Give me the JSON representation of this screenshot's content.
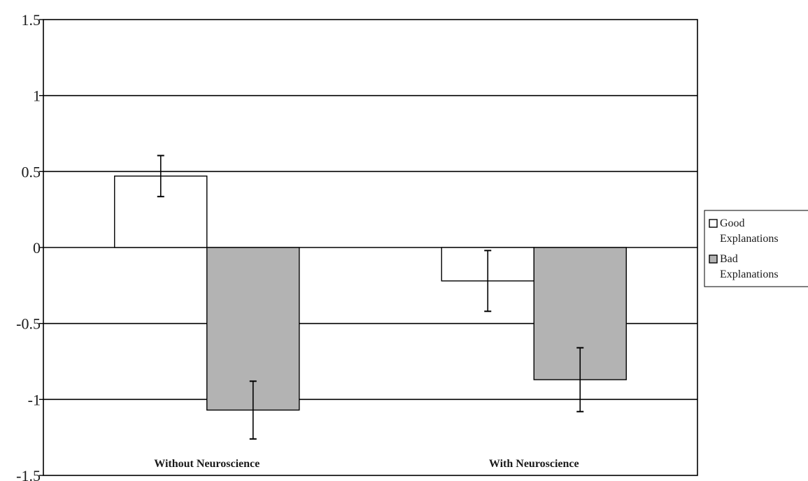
{
  "chart_data": {
    "type": "bar",
    "title": "",
    "xlabel": "",
    "ylabel": "",
    "categories": [
      "Without Neuroscience",
      "With Neuroscience"
    ],
    "series": [
      {
        "name": "Good Explanations",
        "name_lines": [
          "Good",
          "Explanations"
        ],
        "values": [
          0.47,
          -0.22
        ],
        "error": [
          0.135,
          0.2
        ],
        "color": "#ffffff"
      },
      {
        "name": "Bad Explanations",
        "name_lines": [
          "Bad",
          "Explanations"
        ],
        "values": [
          -1.07,
          -0.87
        ],
        "error": [
          0.19,
          0.21
        ],
        "color": "#b3b3b3"
      }
    ],
    "ylim": [
      -1.5,
      1.5
    ],
    "yticks": [
      1.5,
      1,
      0.5,
      0,
      -0.5,
      -1,
      -1.5
    ],
    "ytick_labels": [
      "1.5",
      "1",
      "0.5",
      "0",
      "-0.5",
      "-1",
      "-1.5"
    ],
    "grid": true,
    "legend": "right"
  }
}
